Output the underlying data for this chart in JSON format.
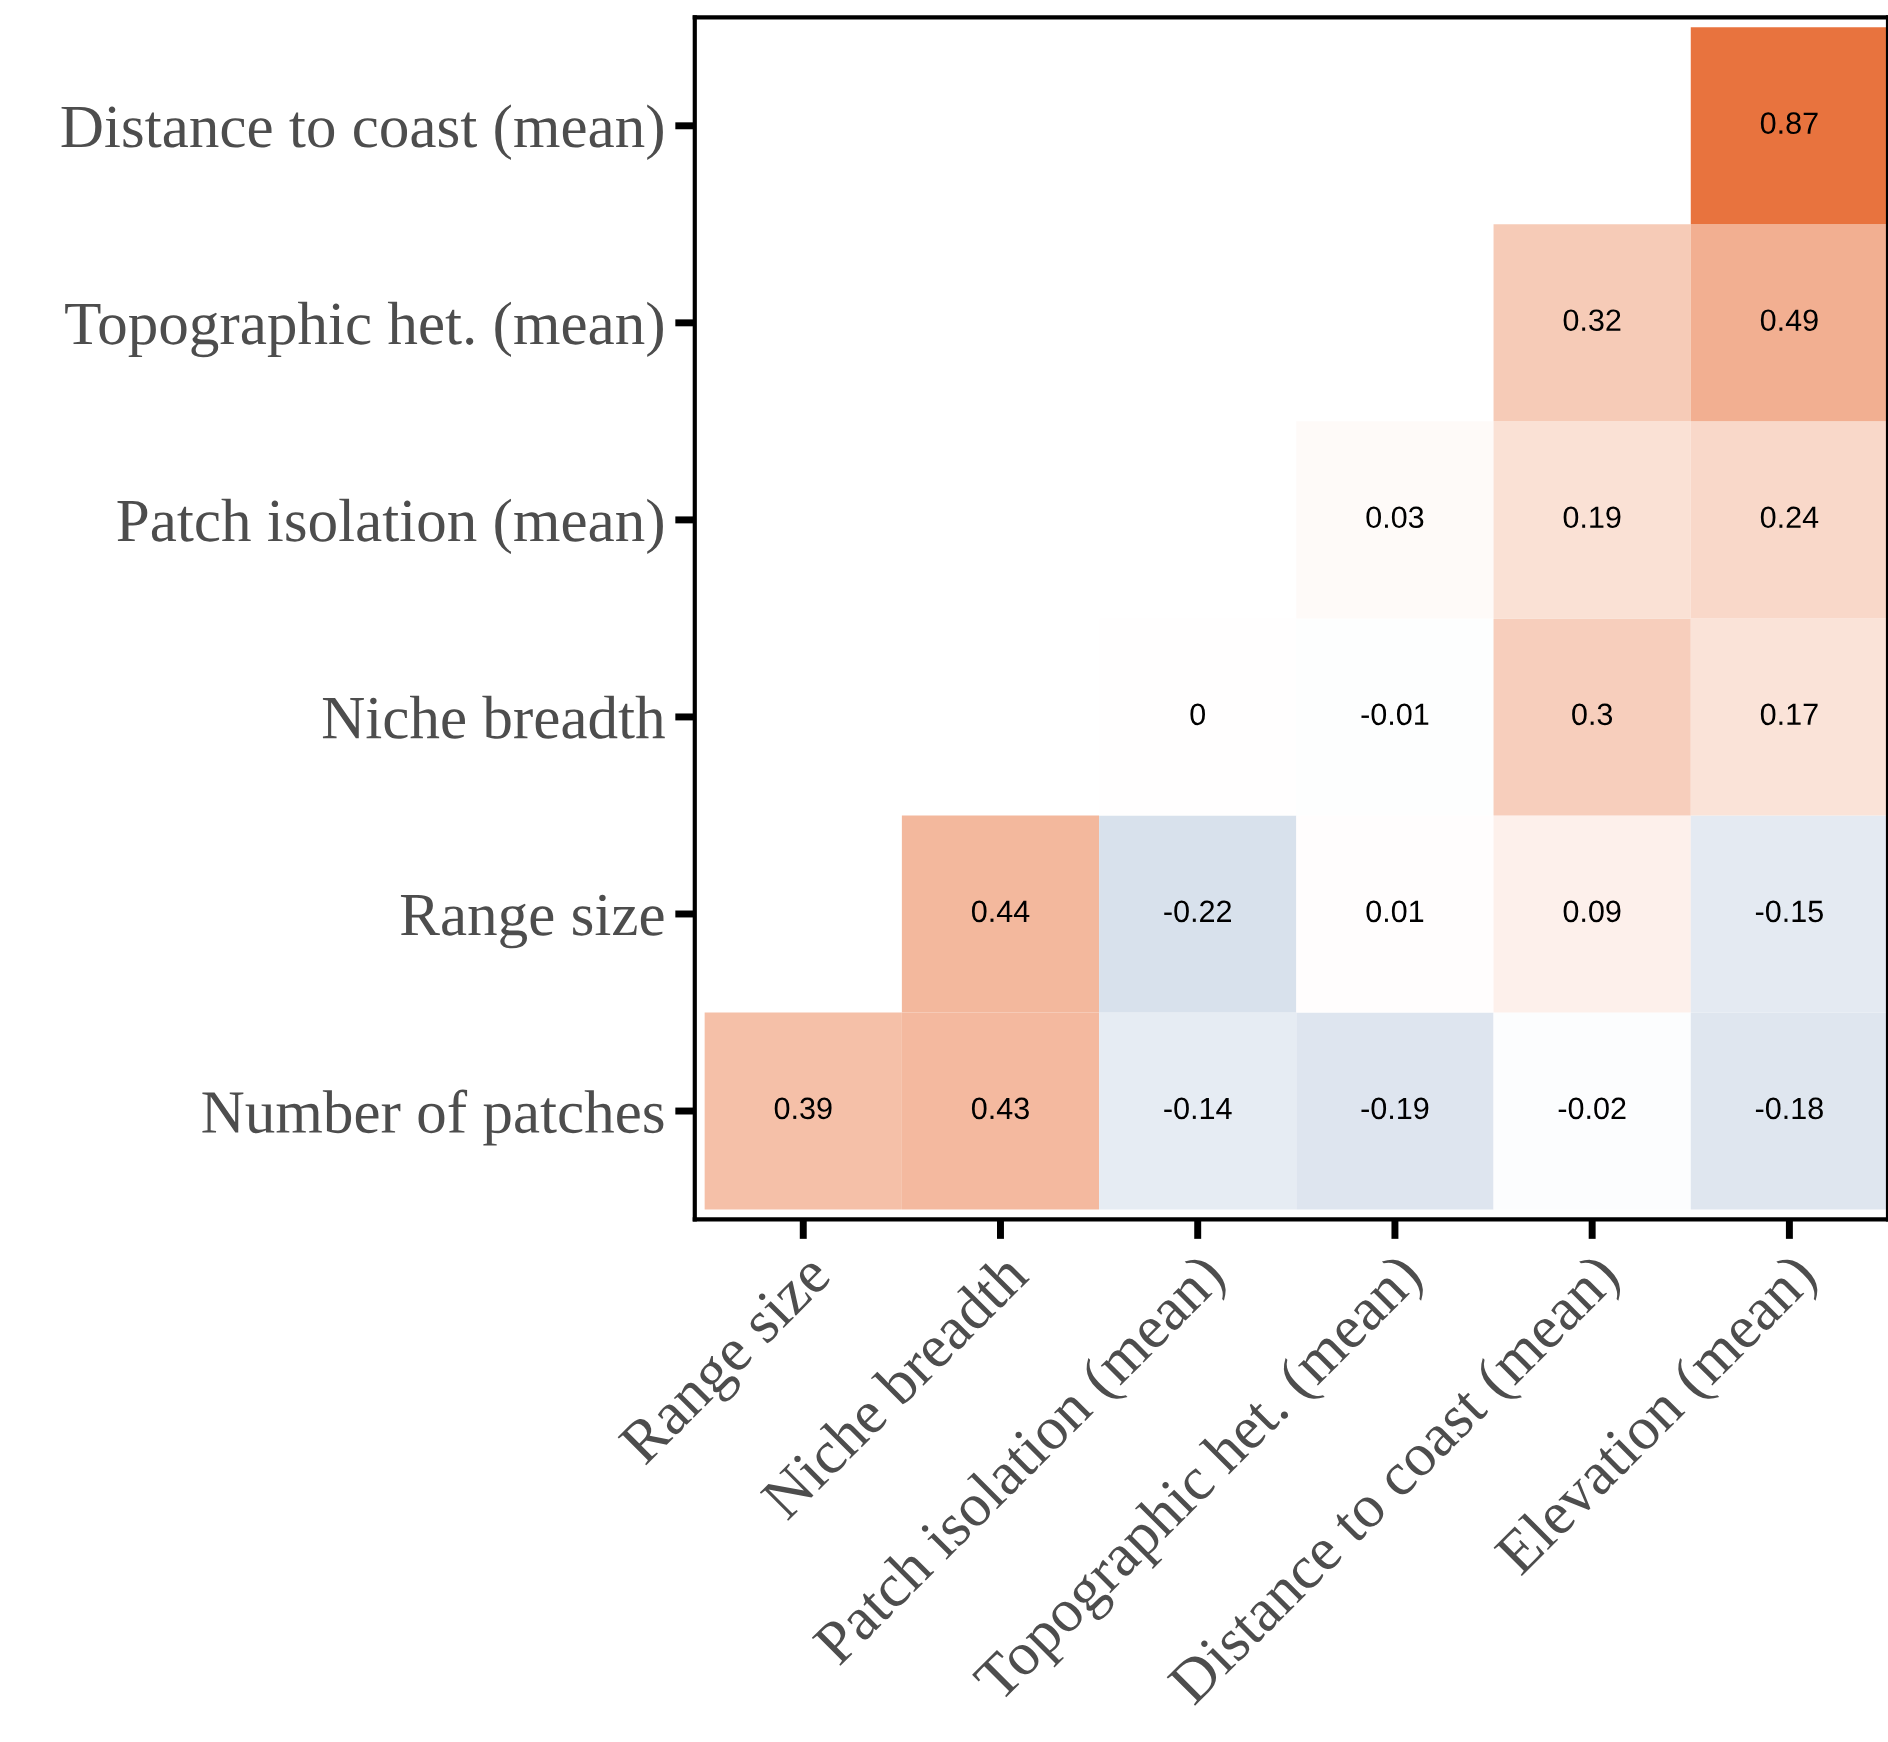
{
  "chart_data": {
    "type": "heatmap",
    "categories": [
      "Range size",
      "Niche breadth",
      "Patch isolation (mean)",
      "Topographic het. (mean)",
      "Distance to coast (mean)",
      "Elevation (mean)"
    ],
    "y_categories": [
      "Distance to coast (mean)",
      "Topographic het. (mean)",
      "Patch isolation (mean)",
      "Niche breadth",
      "Range size",
      "Number of patches"
    ],
    "cells": [
      [
        null,
        null,
        null,
        null,
        null,
        0.87
      ],
      [
        null,
        null,
        null,
        null,
        0.32,
        0.49
      ],
      [
        null,
        null,
        null,
        0.03,
        0.19,
        0.24
      ],
      [
        null,
        null,
        0,
        -0.01,
        0.3,
        0.17
      ],
      [
        null,
        0.44,
        -0.22,
        0.01,
        0.09,
        -0.15
      ],
      [
        0.39,
        0.43,
        -0.14,
        -0.19,
        -0.02,
        -0.18
      ]
    ],
    "colors": [
      "#6688b4",
      "#ffffff",
      "#e8733e"
    ],
    "data_labels": true,
    "grid": false
  }
}
